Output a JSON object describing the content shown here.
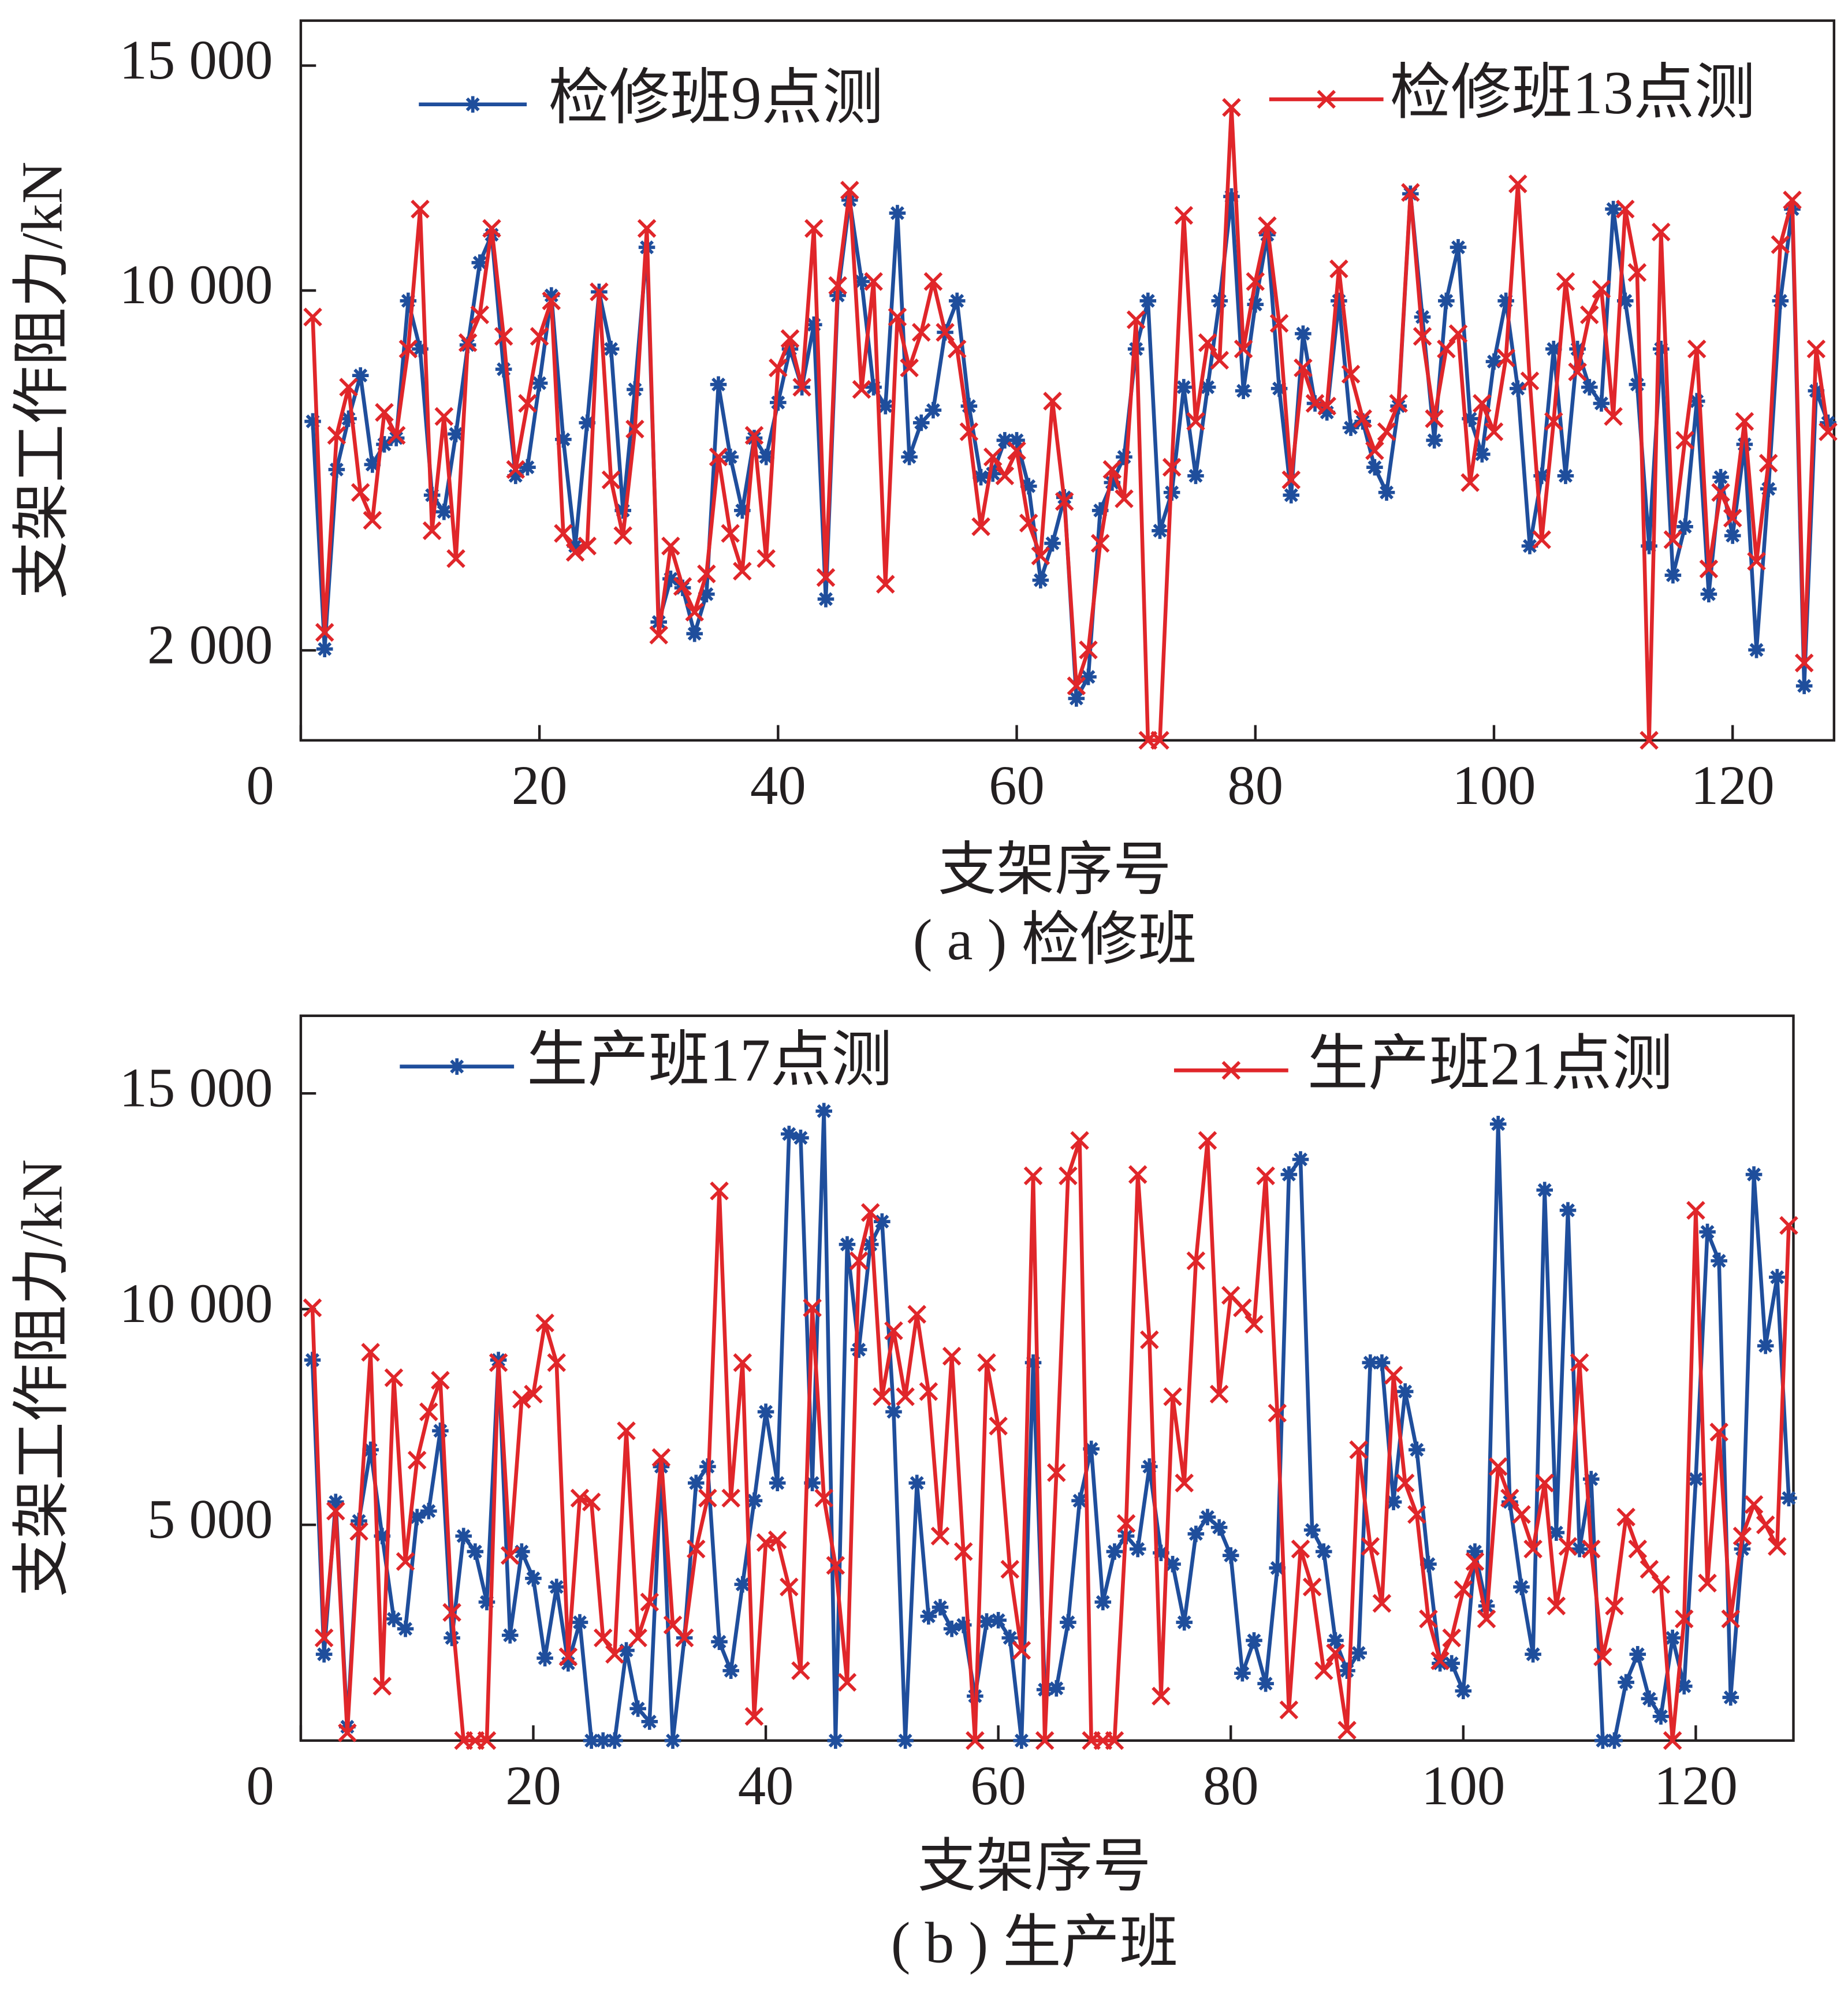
{
  "chart_data": [
    {
      "type": "line",
      "title": "( a )  检修班",
      "xlabel": "支架序号",
      "ylabel": "支架工作阻力/kN",
      "x": [
        1,
        2,
        3,
        4,
        5,
        6,
        7,
        8,
        9,
        10,
        11,
        12,
        13,
        14,
        15,
        16,
        17,
        18,
        19,
        20,
        21,
        22,
        23,
        24,
        25,
        26,
        27,
        28,
        29,
        30,
        31,
        32,
        33,
        34,
        35,
        36,
        37,
        38,
        39,
        40,
        41,
        42,
        43,
        44,
        45,
        46,
        47,
        48,
        49,
        50,
        51,
        52,
        53,
        54,
        55,
        56,
        57,
        58,
        59,
        60,
        61,
        62,
        63,
        64,
        65,
        66,
        67,
        68,
        69,
        70,
        71,
        72,
        73,
        74,
        75,
        76,
        77,
        78,
        79,
        80,
        81,
        82,
        83,
        84,
        85,
        86,
        87,
        88,
        89,
        90,
        91,
        92,
        93,
        94,
        95,
        96,
        97,
        98,
        99,
        100,
        101,
        102,
        103,
        104,
        105,
        106,
        107,
        108,
        109,
        110,
        111,
        112,
        113,
        114,
        115,
        116,
        117,
        118,
        119,
        120,
        121,
        122,
        123,
        124,
        125,
        126,
        127,
        128
      ],
      "series": [
        {
          "name": "检修班9点测",
          "color": "#1f4e9c",
          "marker": "asterisk",
          "values": [
            7090,
            2030,
            6020,
            7150,
            8110,
            6130,
            6580,
            6720,
            9770,
            8700,
            5450,
            5080,
            6810,
            8790,
            10620,
            11240,
            8250,
            5880,
            6070,
            7940,
            9890,
            6690,
            4320,
            7060,
            9970,
            8700,
            5110,
            7800,
            10960,
            2630,
            3590,
            3390,
            2370,
            3250,
            7910,
            6300,
            5110,
            6720,
            6300,
            7510,
            8700,
            7850,
            9240,
            3140,
            9890,
            12010,
            10200,
            7850,
            7430,
            11720,
            6300,
            7060,
            7340,
            9070,
            9770,
            7430,
            5850,
            5930,
            6670,
            6670,
            5650,
            3560,
            4380,
            5400,
            930,
            1410,
            5110,
            5730,
            6300,
            8700,
            9770,
            4660,
            5510,
            7850,
            5880,
            7850,
            9770,
            12090,
            7770,
            9690,
            11240,
            7820,
            5450,
            9040,
            7490,
            7290,
            9770,
            6950,
            7090,
            6070,
            5510,
            7430,
            12150,
            9410,
            6670,
            9770,
            10960,
            7150,
            6360,
            8420,
            9770,
            7820,
            4320,
            5880,
            8700,
            5880,
            8700,
            7850,
            7490,
            11810,
            9770,
            7910,
            4320,
            8700,
            3670,
            4750,
            7540,
            3250,
            5850,
            4550,
            6580,
            2010,
            5590,
            9770,
            11810,
            1210,
            7770,
            7060
          ]
        },
        {
          "name": "检修班13点测",
          "color": "#e0262a",
          "marker": "x",
          "values": [
            9410,
            2400,
            6780,
            7850,
            5510,
            4890,
            7290,
            6780,
            8700,
            11810,
            4660,
            7200,
            4040,
            8840,
            9460,
            11380,
            8980,
            6020,
            7490,
            8980,
            9770,
            4600,
            4180,
            4320,
            9970,
            5790,
            4550,
            6920,
            11380,
            2340,
            4320,
            3420,
            2850,
            3700,
            6300,
            4600,
            3760,
            6780,
            4040,
            8280,
            8930,
            7850,
            11380,
            3620,
            10110,
            12230,
            7800,
            10200,
            3470,
            9410,
            8280,
            9070,
            10200,
            9070,
            8700,
            6860,
            4750,
            6300,
            5880,
            6440,
            4830,
            4100,
            7540,
            5310,
            1210,
            2010,
            4380,
            6020,
            5370,
            9350,
            0,
            0,
            6070,
            11670,
            7090,
            8840,
            8450,
            14070,
            8700,
            10200,
            11440,
            9270,
            5790,
            8280,
            7490,
            7430,
            10480,
            8140,
            7150,
            6440,
            6860,
            7490,
            12180,
            8980,
            7150,
            8700,
            9040,
            5730,
            7490,
            6860,
            8500,
            12370,
            7990,
            4460,
            7090,
            10200,
            8190,
            9460,
            10030,
            7200,
            11810,
            10400,
            0,
            11300,
            4460,
            6670,
            8700,
            3810,
            5510,
            4940,
            7090,
            3980,
            6160,
            11020,
            12010,
            1720,
            8700,
            6860
          ]
        }
      ],
      "xlim": [
        0,
        128.5
      ],
      "xticks": [
        0,
        20,
        40,
        60,
        80,
        100,
        120
      ],
      "ylim": [
        0,
        16000
      ],
      "yticks": [
        {
          "value": 2000,
          "label": "2 000"
        },
        {
          "value": 10000,
          "label": "10 000"
        },
        {
          "value": 15000,
          "label": "15 000"
        }
      ]
    },
    {
      "type": "line",
      "title": "( b )  生产班",
      "xlabel": "支架序号",
      "ylabel": "支架工作阻力/kN",
      "x": [
        1,
        2,
        3,
        4,
        5,
        6,
        7,
        8,
        9,
        10,
        11,
        12,
        13,
        14,
        15,
        16,
        17,
        18,
        19,
        20,
        21,
        22,
        23,
        24,
        25,
        26,
        27,
        28,
        29,
        30,
        31,
        32,
        33,
        34,
        35,
        36,
        37,
        38,
        39,
        40,
        41,
        42,
        43,
        44,
        45,
        46,
        47,
        48,
        49,
        50,
        51,
        52,
        53,
        54,
        55,
        56,
        57,
        58,
        59,
        60,
        61,
        62,
        63,
        64,
        65,
        66,
        67,
        68,
        69,
        70,
        71,
        72,
        73,
        74,
        75,
        76,
        77,
        78,
        79,
        80,
        81,
        82,
        83,
        84,
        85,
        86,
        87,
        88,
        89,
        90,
        91,
        92,
        93,
        94,
        95,
        96,
        97,
        98,
        99,
        100,
        101,
        102,
        103,
        104,
        105,
        106,
        107,
        108,
        109,
        110,
        111,
        112,
        113,
        114,
        115,
        116,
        117,
        118,
        119,
        120,
        121,
        122,
        123,
        124,
        125,
        126,
        127,
        128
      ],
      "series": [
        {
          "name": "生产班17点测",
          "color": "#1f4e9c",
          "marker": "asterisk",
          "values": [
            8820,
            2000,
            5530,
            320,
            5090,
            6740,
            4740,
            2820,
            2590,
            5180,
            5320,
            7180,
            2380,
            4740,
            4380,
            3210,
            8820,
            2440,
            4380,
            3760,
            1910,
            3560,
            1790,
            2740,
            0,
            0,
            0,
            2090,
            740,
            440,
            6350,
            0,
            2380,
            5970,
            6350,
            2290,
            1620,
            3620,
            5560,
            7620,
            5970,
            14060,
            13970,
            5970,
            14590,
            0,
            11500,
            9060,
            11500,
            12030,
            7620,
            0,
            5970,
            2880,
            3090,
            2590,
            2680,
            1030,
            2760,
            2790,
            2380,
            0,
            8760,
            1180,
            1210,
            2740,
            5560,
            6760,
            3210,
            4380,
            4740,
            4440,
            6350,
            4350,
            4090,
            2740,
            4790,
            5180,
            4940,
            4290,
            1560,
            2320,
            1320,
            4000,
            13120,
            13470,
            4880,
            4380,
            2320,
            1620,
            2030,
            8760,
            8760,
            5530,
            8090,
            6740,
            4090,
            1790,
            1790,
            1150,
            4380,
            3120,
            14290,
            5530,
            3560,
            2000,
            12760,
            4820,
            12290,
            4440,
            6060,
            0,
            0,
            1350,
            2000,
            970,
            560,
            2380,
            1260,
            6060,
            11790,
            11120,
            1000,
            4440,
            13120,
            9150,
            10740,
            5620
          ]
        },
        {
          "name": "生产班21点测",
          "color": "#e0262a",
          "marker": "x",
          "values": [
            10030,
            2380,
            5320,
            180,
            4850,
            9000,
            1260,
            8410,
            4150,
            6500,
            7620,
            8350,
            2970,
            0,
            0,
            0,
            8760,
            4290,
            7910,
            8030,
            9680,
            8760,
            1940,
            5620,
            5530,
            2380,
            2000,
            7180,
            2380,
            3210,
            6560,
            2680,
            2380,
            4440,
            5620,
            12740,
            5620,
            8760,
            560,
            4590,
            4650,
            3560,
            1620,
            10030,
            5620,
            4060,
            1350,
            11120,
            12240,
            7970,
            9500,
            7970,
            9880,
            8090,
            4740,
            8910,
            4380,
            0,
            8760,
            7290,
            3970,
            2090,
            13090,
            0,
            6210,
            13090,
            13910,
            0,
            0,
            0,
            5030,
            13120,
            9290,
            1030,
            7970,
            5970,
            11120,
            13910,
            8030,
            10320,
            10030,
            9650,
            13090,
            7590,
            710,
            4440,
            3560,
            1620,
            2030,
            240,
            6740,
            4500,
            3180,
            8470,
            5970,
            5240,
            2820,
            1850,
            2380,
            3500,
            4150,
            2820,
            6350,
            5620,
            5240,
            4440,
            5970,
            3120,
            4500,
            8760,
            4440,
            1940,
            3120,
            5180,
            4440,
            3970,
            3620,
            0,
            2820,
            12290,
            3650,
            7150,
            2820,
            4740,
            5470,
            5000,
            4500,
            11940
          ]
        }
      ],
      "xlim": [
        0,
        128.4
      ],
      "xticks": [
        0,
        20,
        40,
        60,
        80,
        100,
        120
      ],
      "ylim": [
        0,
        16800
      ],
      "yticks": [
        {
          "value": 5000,
          "label": "5 000"
        },
        {
          "value": 10000,
          "label": "10 000"
        },
        {
          "value": 15000,
          "label": "15 000"
        }
      ]
    }
  ]
}
